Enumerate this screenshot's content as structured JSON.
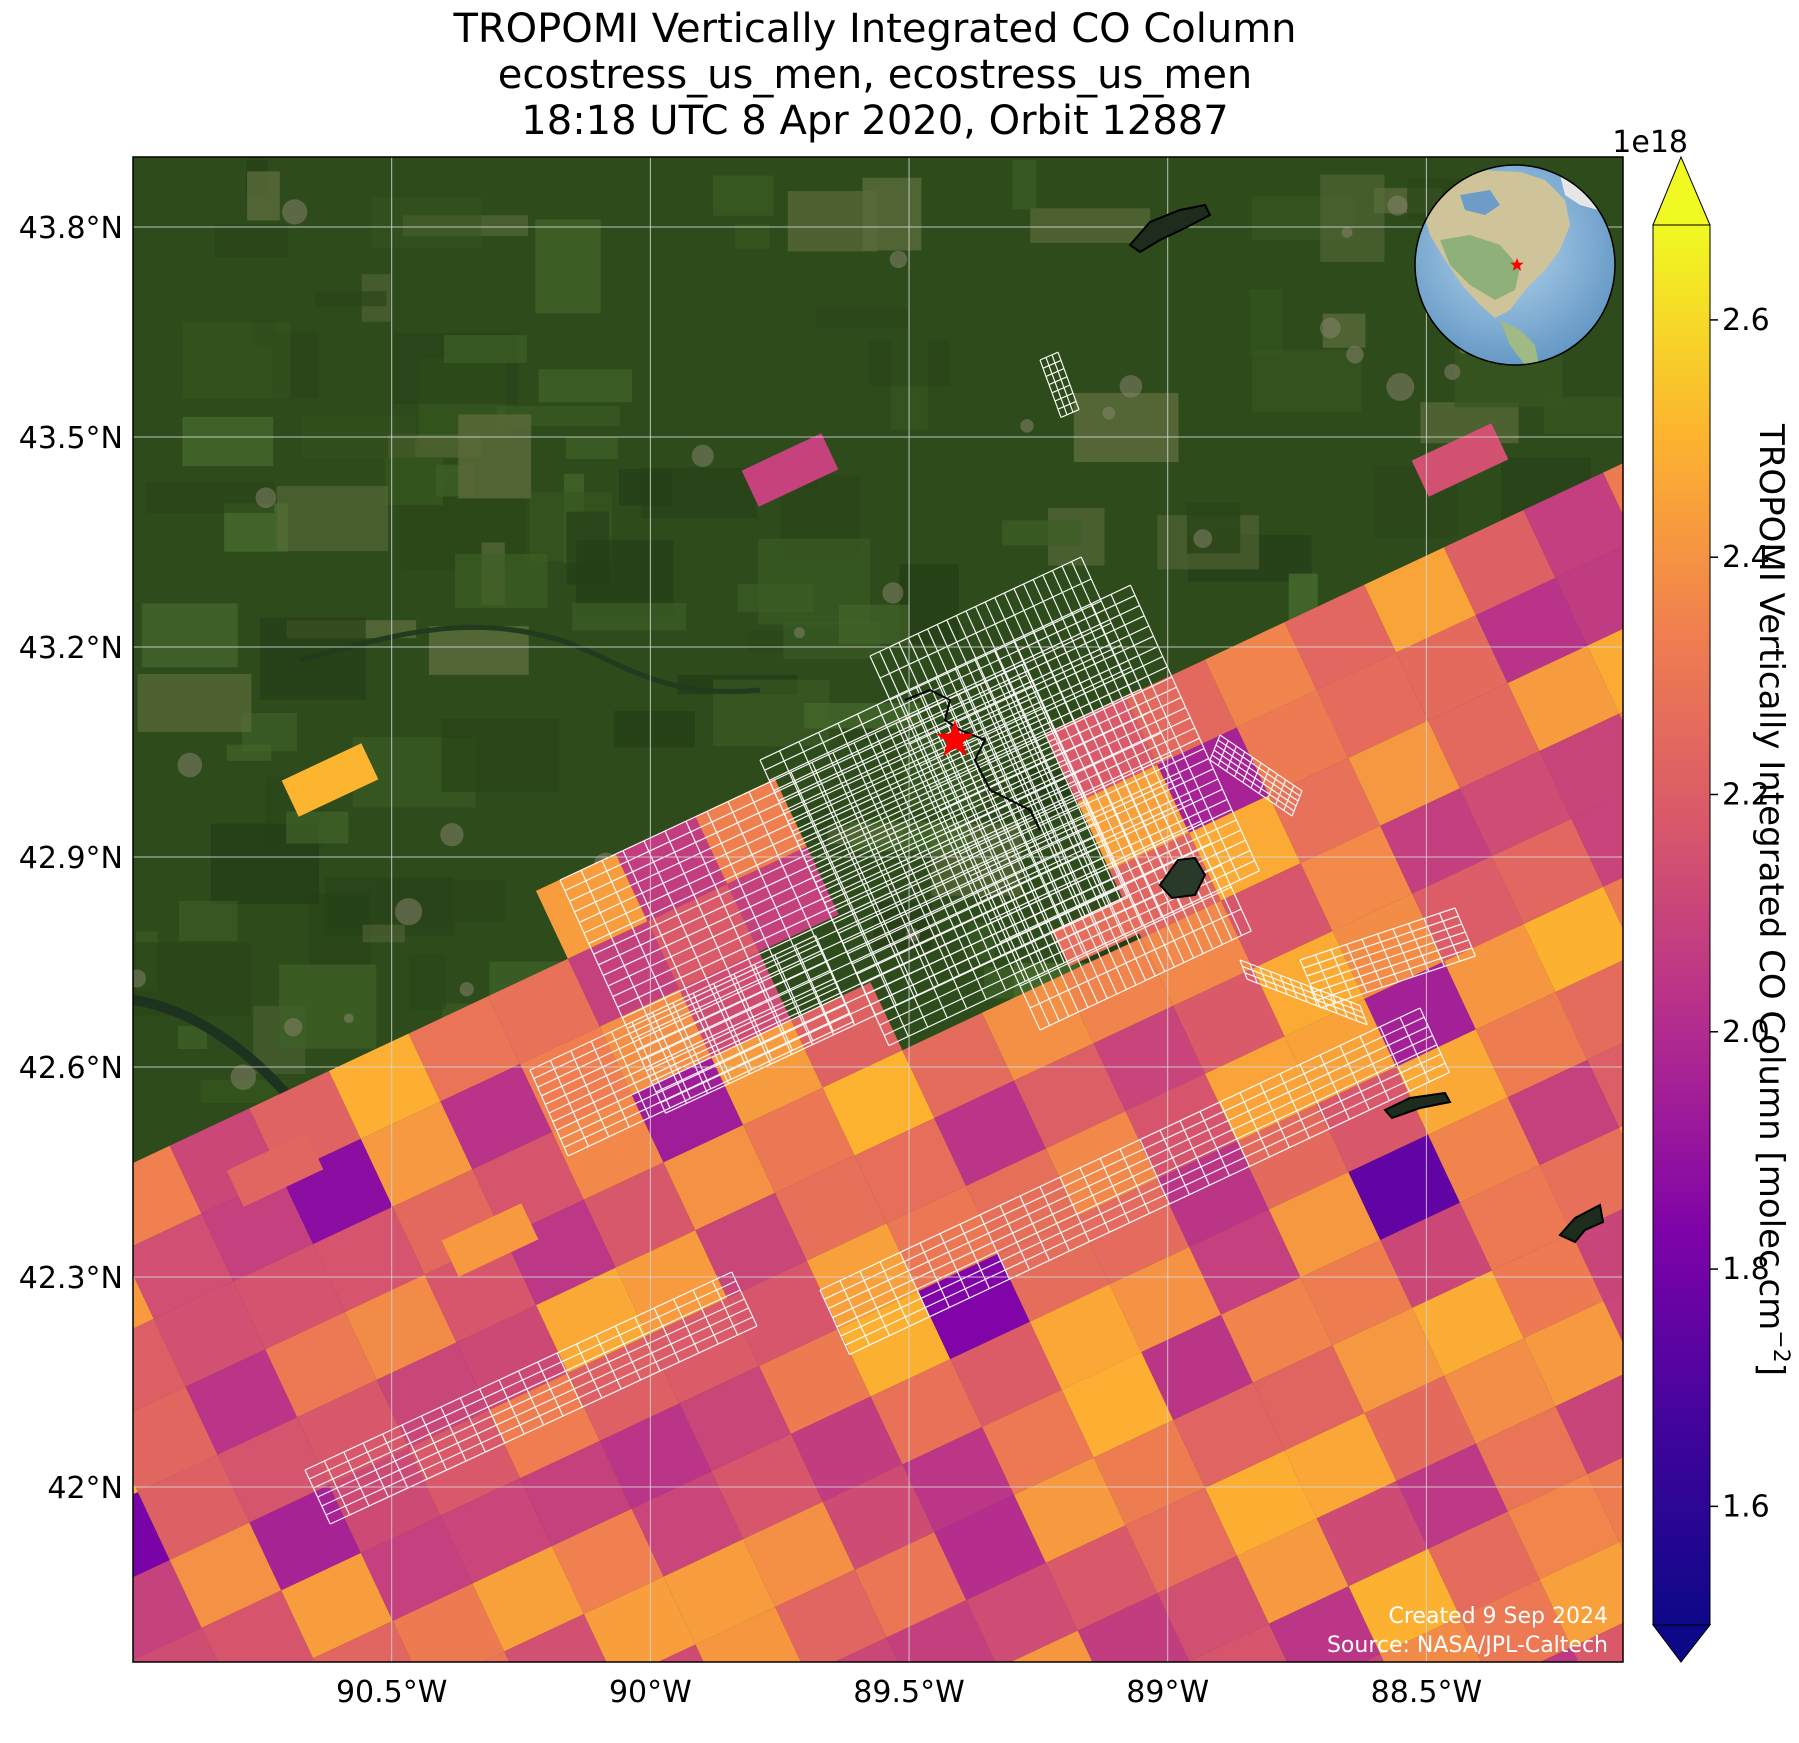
{
  "title": {
    "line1": "TROPOMI Vertically Integrated CO Column",
    "line2": "ecostress_us_men, ecostress_us_men",
    "line3": "18:18 UTC 8 Apr 2020, Orbit 12887"
  },
  "map": {
    "lat_ticks": [
      "43.8°N",
      "43.5°N",
      "43.2°N",
      "42.9°N",
      "42.6°N",
      "42.3°N",
      "42°N"
    ],
    "lon_ticks": [
      "90.5°W",
      "90°W",
      "89.5°W",
      "89°W",
      "88.5°W"
    ],
    "lon_range": [
      -91.0,
      -88.12
    ],
    "lat_range": [
      41.75,
      43.9
    ],
    "site_marker_icon": "red-star-icon",
    "inset_globe_icon": "globe-icon",
    "colormap": "plasma",
    "basemap": "satellite imagery"
  },
  "colorbar": {
    "label": "TROPOMI Vertically Integrated CO Column [molec cm",
    "label_exponent": "−2",
    "label_close": "]",
    "scale_factor": "1e18",
    "ticks": [
      "1.6",
      "1.8",
      "2.0",
      "2.2",
      "2.4",
      "2.6"
    ],
    "range": [
      1.5,
      2.68
    ]
  },
  "credits": {
    "created": "Created 9 Sep 2024",
    "source": "Source: NASA/JPL-Caltech"
  }
}
